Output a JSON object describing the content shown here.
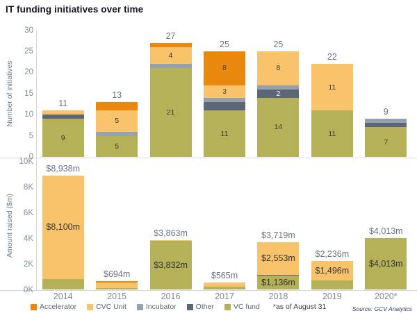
{
  "title": "IT funding initiatives over time",
  "source": "Source: GCV Analytics",
  "colors": {
    "accelerator": "#e8890d",
    "cvc": "#f9c36b",
    "incubator": "#97a0ad",
    "other": "#5b6678",
    "vc": "#b4b158",
    "axis_line": "#d9d9d9",
    "tick_text": "#828d9b",
    "total_text": "#6a7484"
  },
  "legend": {
    "items": [
      {
        "key": "accelerator",
        "label": "Accelerator"
      },
      {
        "key": "cvc",
        "label": "CVC Unit"
      },
      {
        "key": "incubator",
        "label": "Incubator"
      },
      {
        "key": "other",
        "label": "Other"
      },
      {
        "key": "vc",
        "label": "VC fund"
      }
    ],
    "note": "*as of August 31"
  },
  "chart_data": [
    {
      "type": "bar",
      "stacked": true,
      "title": "",
      "ylabel": "Number of initiatives",
      "categories": [
        "2014",
        "2015",
        "2016",
        "2017",
        "2018",
        "2019",
        "2020*"
      ],
      "show_x_labels": false,
      "ylim": [
        0,
        30
      ],
      "grid": false,
      "legend_position": "bottom",
      "yticks": [
        {
          "label": "0",
          "value": 0
        },
        {
          "label": "5",
          "value": 5
        },
        {
          "label": "10",
          "value": 10
        },
        {
          "label": "15",
          "value": 15
        },
        {
          "label": "20",
          "value": 20
        },
        {
          "label": "25",
          "value": 25
        },
        {
          "label": "30",
          "value": 30
        }
      ],
      "series": [
        {
          "key": "vc",
          "name": "VC fund",
          "values": [
            9,
            5,
            21,
            11,
            14,
            11,
            7
          ]
        },
        {
          "key": "other",
          "name": "Other",
          "values": [
            1,
            0,
            0,
            2,
            2,
            0,
            1
          ]
        },
        {
          "key": "incubator",
          "name": "Incubator",
          "values": [
            0,
            1,
            1,
            1,
            1,
            0,
            1
          ]
        },
        {
          "key": "cvc",
          "name": "CVC Unit",
          "values": [
            1,
            5,
            4,
            3,
            8,
            11,
            0
          ]
        },
        {
          "key": "accelerator",
          "name": "Accelerator",
          "values": [
            0,
            2,
            1,
            8,
            0,
            0,
            0
          ]
        }
      ],
      "totals": [
        "11",
        "13",
        "27",
        "25",
        "25",
        "22",
        "9"
      ],
      "bar_labels": [
        {
          "c": 0,
          "s": "vc",
          "text": "9"
        },
        {
          "c": 1,
          "s": "vc",
          "text": "5"
        },
        {
          "c": 1,
          "s": "cvc",
          "text": "5"
        },
        {
          "c": 2,
          "s": "vc",
          "text": "21"
        },
        {
          "c": 2,
          "s": "cvc",
          "text": "4"
        },
        {
          "c": 3,
          "s": "vc",
          "text": "11"
        },
        {
          "c": 3,
          "s": "cvc",
          "text": "3"
        },
        {
          "c": 3,
          "s": "accelerator",
          "text": "8"
        },
        {
          "c": 4,
          "s": "vc",
          "text": "14"
        },
        {
          "c": 4,
          "s": "other",
          "text": "2",
          "white": true
        },
        {
          "c": 4,
          "s": "cvc",
          "text": "8"
        },
        {
          "c": 5,
          "s": "vc",
          "text": "11"
        },
        {
          "c": 5,
          "s": "cvc",
          "text": "11"
        },
        {
          "c": 6,
          "s": "vc",
          "text": "7"
        }
      ]
    },
    {
      "type": "bar",
      "stacked": true,
      "title": "",
      "ylabel": "Amount raised ($m)",
      "categories": [
        "2014",
        "2015",
        "2016",
        "2017",
        "2018",
        "2019",
        "2020*"
      ],
      "show_x_labels": true,
      "ylim": [
        0,
        10000
      ],
      "grid": false,
      "legend_position": "bottom",
      "yticks": [
        {
          "label": "0K",
          "value": 0
        },
        {
          "label": "2K",
          "value": 2000
        },
        {
          "label": "4K",
          "value": 4000
        },
        {
          "label": "6K",
          "value": 6000
        },
        {
          "label": "8K",
          "value": 8000
        },
        {
          "label": "10K",
          "value": 10000
        }
      ],
      "series": [
        {
          "key": "vc",
          "name": "VC fund",
          "values": [
            838,
            160,
            3832,
            265,
            1136,
            740,
            4013
          ]
        },
        {
          "key": "other",
          "name": "Other",
          "values": [
            0,
            0,
            0,
            0,
            30,
            0,
            0
          ]
        },
        {
          "key": "incubator",
          "name": "Incubator",
          "values": [
            0,
            0,
            0,
            0,
            0,
            0,
            0
          ]
        },
        {
          "key": "cvc",
          "name": "CVC Unit",
          "values": [
            8100,
            434,
            31,
            300,
            2553,
            1496,
            0
          ]
        },
        {
          "key": "accelerator",
          "name": "Accelerator",
          "values": [
            0,
            100,
            0,
            0,
            0,
            0,
            0
          ]
        }
      ],
      "totals": [
        "$8,938m",
        "$694m",
        "$3,863m",
        "$565m",
        "$3,719m",
        "$2,236m",
        "$4,013m"
      ],
      "bar_labels": [
        {
          "c": 0,
          "s": "cvc",
          "text": "$8,100m",
          "money": true
        },
        {
          "c": 2,
          "s": "vc",
          "text": "$3,832m",
          "money": true
        },
        {
          "c": 4,
          "s": "cvc",
          "text": "$2,553m",
          "money": true
        },
        {
          "c": 4,
          "s": "vc",
          "text": "$1,136m",
          "money": true
        },
        {
          "c": 5,
          "s": "cvc",
          "text": "$1,496m",
          "money": true
        },
        {
          "c": 6,
          "s": "vc",
          "text": "$4,013m",
          "money": true
        }
      ]
    }
  ]
}
